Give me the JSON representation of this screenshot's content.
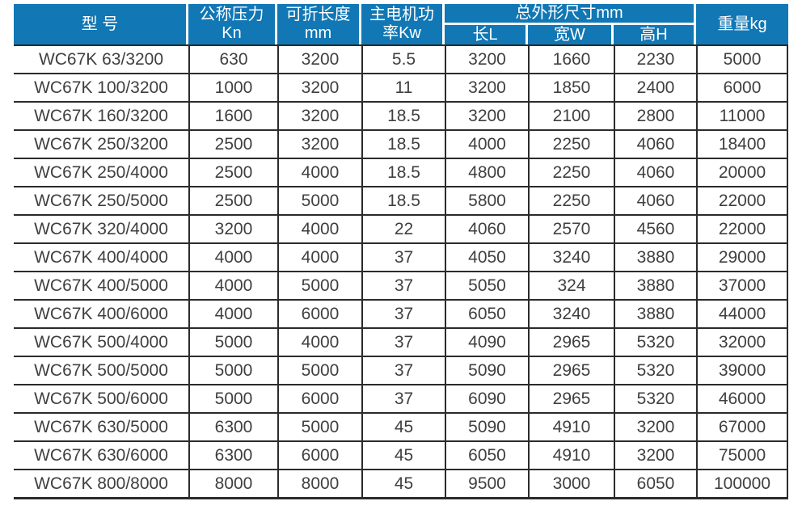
{
  "colors": {
    "header_background": "#1177b5",
    "header_text": "#ffffff",
    "body_text": "#3f3f3f",
    "gridline": "#2b2b2b",
    "page_background": "#ffffff"
  },
  "table": {
    "header": {
      "model": "型 号",
      "pressure_line1": "公称压力",
      "pressure_line2": "Kn",
      "fold_length_line1": "可折长度",
      "fold_length_line2": "mm",
      "motor_power_line1": "主电机功",
      "motor_power_line2": "率Kw",
      "dimensions_group": "总外形尺寸mm",
      "dimension_length": "长L",
      "dimension_width": "宽W",
      "dimension_height": "高H",
      "weight": "重量kg"
    },
    "rows": [
      [
        "WC67K 63/3200",
        "630",
        "3200",
        "5.5",
        "3200",
        "1660",
        "2230",
        "5000"
      ],
      [
        "WC67K 100/3200",
        "1000",
        "3200",
        "11",
        "3200",
        "1850",
        "2400",
        "6000"
      ],
      [
        "WC67K 160/3200",
        "1600",
        "3200",
        "18.5",
        "3200",
        "2100",
        "2800",
        "11000"
      ],
      [
        "WC67K 250/3200",
        "2500",
        "3200",
        "18.5",
        "4000",
        "2250",
        "4060",
        "18400"
      ],
      [
        "WC67K 250/4000",
        "2500",
        "4000",
        "18.5",
        "4800",
        "2250",
        "4060",
        "20000"
      ],
      [
        "WC67K 250/5000",
        "2500",
        "5000",
        "18.5",
        "5800",
        "2250",
        "4060",
        "22000"
      ],
      [
        "WC67K 320/4000",
        "3200",
        "4000",
        "22",
        "4060",
        "2570",
        "4560",
        "22000"
      ],
      [
        "WC67K 400/4000",
        "4000",
        "4000",
        "37",
        "4050",
        "3240",
        "3880",
        "29000"
      ],
      [
        "WC67K 400/5000",
        "4000",
        "5000",
        "37",
        "5050",
        "324",
        "3880",
        "37000"
      ],
      [
        "WC67K 400/6000",
        "4000",
        "6000",
        "37",
        "6050",
        "3240",
        "3880",
        "44000"
      ],
      [
        "WC67K 500/4000",
        "5000",
        "4000",
        "37",
        "4090",
        "2965",
        "5320",
        "32000"
      ],
      [
        "WC67K 500/5000",
        "5000",
        "5000",
        "37",
        "5090",
        "2965",
        "5320",
        "39000"
      ],
      [
        "WC67K 500/6000",
        "5000",
        "6000",
        "37",
        "6090",
        "2965",
        "5320",
        "46000"
      ],
      [
        "WC67K 630/5000",
        "6300",
        "5000",
        "45",
        "5090",
        "4910",
        "3200",
        "67000"
      ],
      [
        "WC67K 630/6000",
        "6300",
        "6000",
        "45",
        "6050",
        "4910",
        "3200",
        "75000"
      ],
      [
        "WC67K 800/8000",
        "8000",
        "8000",
        "45",
        "9500",
        "3000",
        "6050",
        "100000"
      ]
    ]
  }
}
